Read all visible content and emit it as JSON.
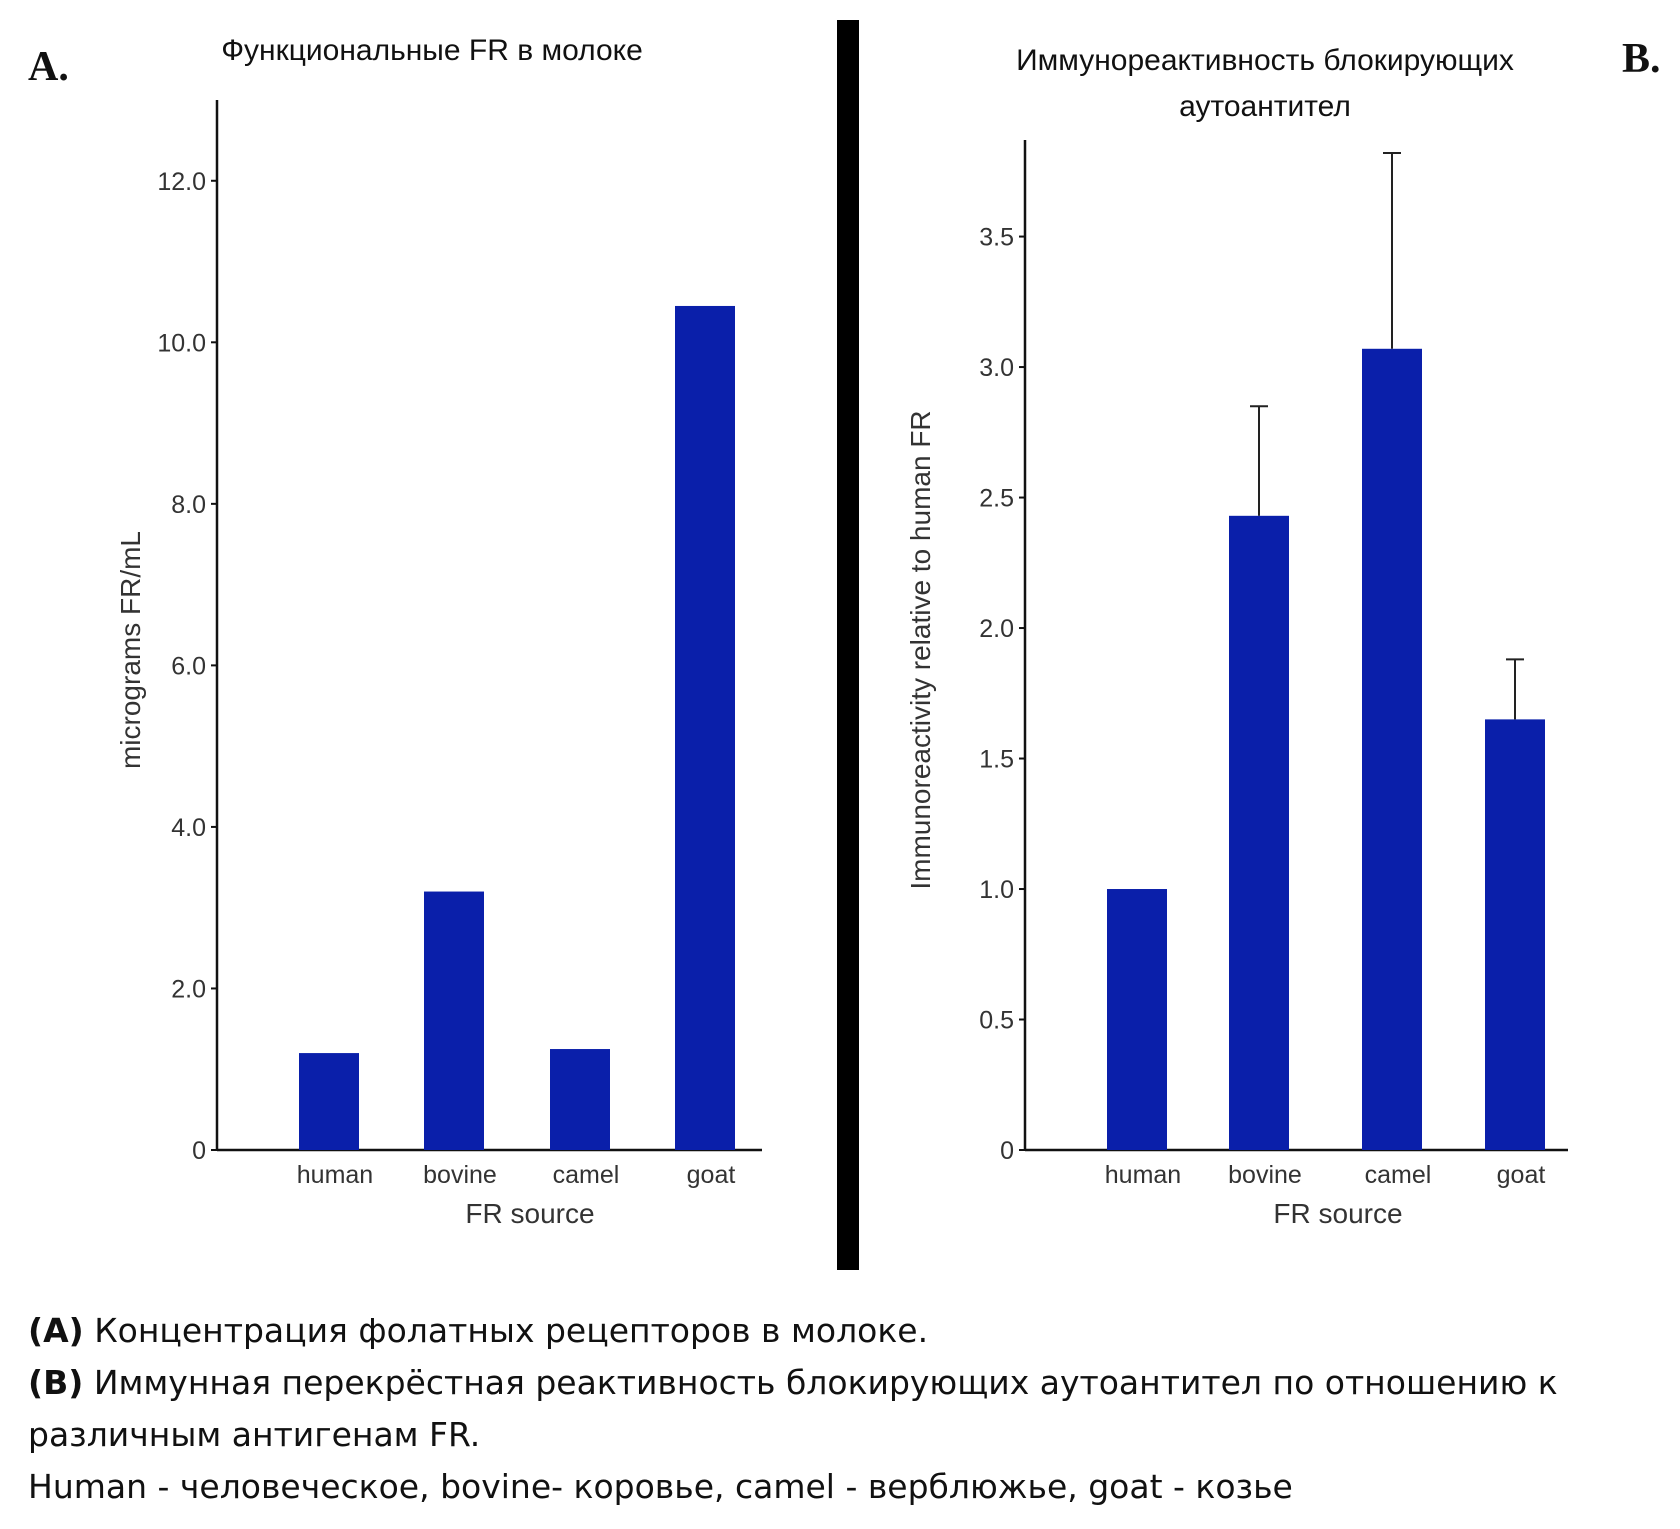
{
  "panels": {
    "a": {
      "letter": "A.",
      "title": "Функциональные FR в молоке"
    },
    "b": {
      "letter": "B.",
      "title_line1": "Иммунореактивность блокирующих",
      "title_line2": "аутоантител"
    }
  },
  "chart_data": [
    {
      "type": "bar",
      "title": "Функциональные FR в молоке",
      "xlabel": "FR source",
      "ylabel": "micrograms FR/mL",
      "categories": [
        "human",
        "bovine",
        "camel",
        "goat"
      ],
      "values": [
        1.2,
        3.2,
        1.25,
        10.45
      ],
      "ylim": [
        0,
        13
      ],
      "yticks": [
        0,
        2,
        4,
        6,
        8,
        10,
        12
      ],
      "ytick_labels": [
        "0",
        "2.0",
        "4.0",
        "6.0",
        "8.0",
        "10.0",
        "12.0"
      ],
      "bar_color": "#0a1faa",
      "grid": false
    },
    {
      "type": "bar",
      "title": "Иммунореактивность блокирующих аутоантител",
      "xlabel": "FR source",
      "ylabel": "Immunoreactivity relative to human FR",
      "categories": [
        "human",
        "bovine",
        "camel",
        "goat"
      ],
      "values": [
        1.0,
        2.43,
        3.07,
        1.65
      ],
      "error_upper": [
        null,
        2.85,
        3.82,
        1.88
      ],
      "ylim": [
        0,
        3.87
      ],
      "yticks": [
        0,
        0.5,
        1.0,
        1.5,
        2.0,
        2.5,
        3.0,
        3.5
      ],
      "ytick_labels": [
        "0",
        "0.5",
        "1.0",
        "1.5",
        "2.0",
        "2.5",
        "3.0",
        "3.5"
      ],
      "bar_color": "#0a1faa",
      "grid": false
    }
  ],
  "caption": {
    "a_label": "(A)",
    "a_text": " Концентрация фолатных рецепторов в молоке.",
    "b_label": "(B)",
    "b_text": " Иммунная перекрёстная реактивность блокирующих аутоантител по отношению к различным антигенам FR.",
    "legend_line": "Human - человеческое, bovine- коровье, camel - верблюжье, goat - козье"
  }
}
